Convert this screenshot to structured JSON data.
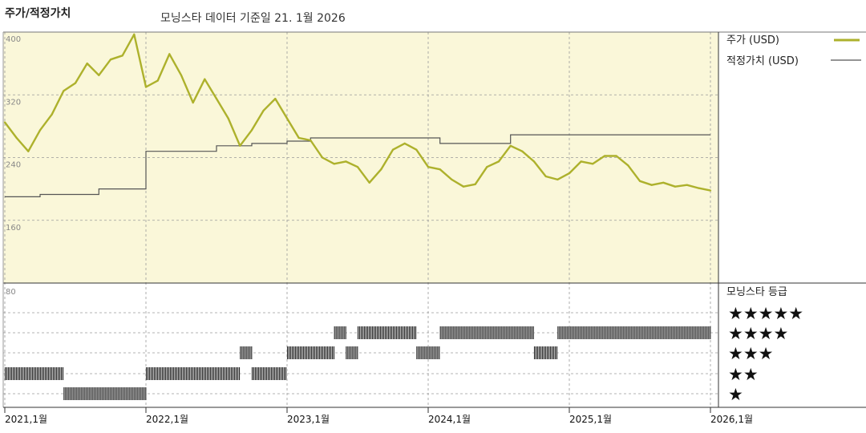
{
  "header": {
    "title": "주가/적정가치",
    "subtitle": "모닝스타 데이터 기준일 21. 1월 2026"
  },
  "legend": {
    "price_label": "주가 (USD)",
    "fair_label": "적정가치 (USD)",
    "rating_title": "모닝스타 등급"
  },
  "colors": {
    "price": "#adb12c",
    "fair": "#555555",
    "upper_bg": "#faf7d9",
    "rating_bar": "#222222"
  },
  "chart_data": [
    {
      "type": "line",
      "title": "주가/적정가치",
      "xlabel": "",
      "ylabel": "",
      "xlim": [
        "2021-01",
        "2026-01"
      ],
      "ylim": [
        80,
        400
      ],
      "yticks": [
        400,
        320,
        240,
        160,
        80
      ],
      "xticks": [
        "2021,1월",
        "2022,1월",
        "2023,1월",
        "2024,1월",
        "2025,1월",
        "2026,1월"
      ],
      "grid": true,
      "legend": "right",
      "series": [
        {
          "name": "주가 (USD)",
          "points": [
            [
              "2021-01",
              285
            ],
            [
              "2021-02",
              265
            ],
            [
              "2021-03",
              248
            ],
            [
              "2021-04",
              275
            ],
            [
              "2021-05",
              295
            ],
            [
              "2021-06",
              325
            ],
            [
              "2021-07",
              335
            ],
            [
              "2021-08",
              360
            ],
            [
              "2021-09",
              345
            ],
            [
              "2021-10",
              365
            ],
            [
              "2021-11",
              370
            ],
            [
              "2021-12",
              397
            ],
            [
              "2022-01",
              330
            ],
            [
              "2022-02",
              338
            ],
            [
              "2022-03",
              372
            ],
            [
              "2022-04",
              345
            ],
            [
              "2022-05",
              310
            ],
            [
              "2022-06",
              340
            ],
            [
              "2022-07",
              315
            ],
            [
              "2022-08",
              290
            ],
            [
              "2022-09",
              255
            ],
            [
              "2022-10",
              275
            ],
            [
              "2022-11",
              300
            ],
            [
              "2022-12",
              315
            ],
            [
              "2023-01",
              290
            ],
            [
              "2023-02",
              265
            ],
            [
              "2023-03",
              262
            ],
            [
              "2023-04",
              240
            ],
            [
              "2023-05",
              232
            ],
            [
              "2023-06",
              235
            ],
            [
              "2023-07",
              228
            ],
            [
              "2023-08",
              208
            ],
            [
              "2023-09",
              225
            ],
            [
              "2023-10",
              250
            ],
            [
              "2023-11",
              258
            ],
            [
              "2023-12",
              250
            ],
            [
              "2024-01",
              228
            ],
            [
              "2024-02",
              225
            ],
            [
              "2024-03",
              212
            ],
            [
              "2024-04",
              203
            ],
            [
              "2024-05",
              206
            ],
            [
              "2024-06",
              228
            ],
            [
              "2024-07",
              235
            ],
            [
              "2024-08",
              255
            ],
            [
              "2024-09",
              248
            ],
            [
              "2024-10",
              235
            ],
            [
              "2024-11",
              216
            ],
            [
              "2024-12",
              212
            ],
            [
              "2025-01",
              220
            ],
            [
              "2025-02",
              235
            ],
            [
              "2025-03",
              232
            ],
            [
              "2025-04",
              242
            ],
            [
              "2025-05",
              242
            ],
            [
              "2025-06",
              230
            ],
            [
              "2025-07",
              210
            ],
            [
              "2025-08",
              205
            ],
            [
              "2025-09",
              208
            ],
            [
              "2025-10",
              203
            ],
            [
              "2025-11",
              205
            ],
            [
              "2025-12",
              201
            ],
            [
              "2026-01",
              198
            ]
          ]
        },
        {
          "name": "적정가치 (USD)",
          "points": [
            [
              "2021-01",
              190
            ],
            [
              "2021-04",
              190
            ],
            [
              "2021-04",
              193
            ],
            [
              "2021-09",
              193
            ],
            [
              "2021-09",
              200
            ],
            [
              "2022-01",
              200
            ],
            [
              "2022-01",
              248
            ],
            [
              "2022-07",
              248
            ],
            [
              "2022-07",
              255
            ],
            [
              "2022-10",
              255
            ],
            [
              "2022-10",
              258
            ],
            [
              "2023-01",
              258
            ],
            [
              "2023-01",
              261
            ],
            [
              "2023-03",
              261
            ],
            [
              "2023-03",
              265
            ],
            [
              "2024-02",
              265
            ],
            [
              "2024-02",
              258
            ],
            [
              "2024-08",
              258
            ],
            [
              "2024-08",
              269
            ],
            [
              "2026-01",
              269
            ]
          ]
        }
      ]
    },
    {
      "type": "bar",
      "title": "모닝스타 등급",
      "ylabel": "",
      "categories": [
        "★★★★★",
        "★★★★",
        "★★★",
        "★★",
        "★"
      ],
      "series": [
        {
          "name": "모닝스타 등급",
          "segments": [
            {
              "start": "2021-01",
              "end": "2021-06",
              "stars": 2
            },
            {
              "start": "2021-06",
              "end": "2022-01",
              "stars": 1
            },
            {
              "start": "2022-01",
              "end": "2022-09",
              "stars": 2
            },
            {
              "start": "2022-09",
              "end": "2022-10",
              "stars": 3
            },
            {
              "start": "2022-10",
              "end": "2023-01",
              "stars": 2
            },
            {
              "start": "2023-01",
              "end": "2023-05",
              "stars": 3
            },
            {
              "start": "2023-05",
              "end": "2023-06",
              "stars": 4
            },
            {
              "start": "2023-06",
              "end": "2023-07",
              "stars": 3
            },
            {
              "start": "2023-07",
              "end": "2023-12",
              "stars": 4
            },
            {
              "start": "2023-12",
              "end": "2024-02",
              "stars": 3
            },
            {
              "start": "2024-02",
              "end": "2024-10",
              "stars": 4
            },
            {
              "start": "2024-10",
              "end": "2024-12",
              "stars": 3
            },
            {
              "start": "2024-12",
              "end": "2026-01",
              "stars": 4
            }
          ]
        }
      ]
    }
  ]
}
